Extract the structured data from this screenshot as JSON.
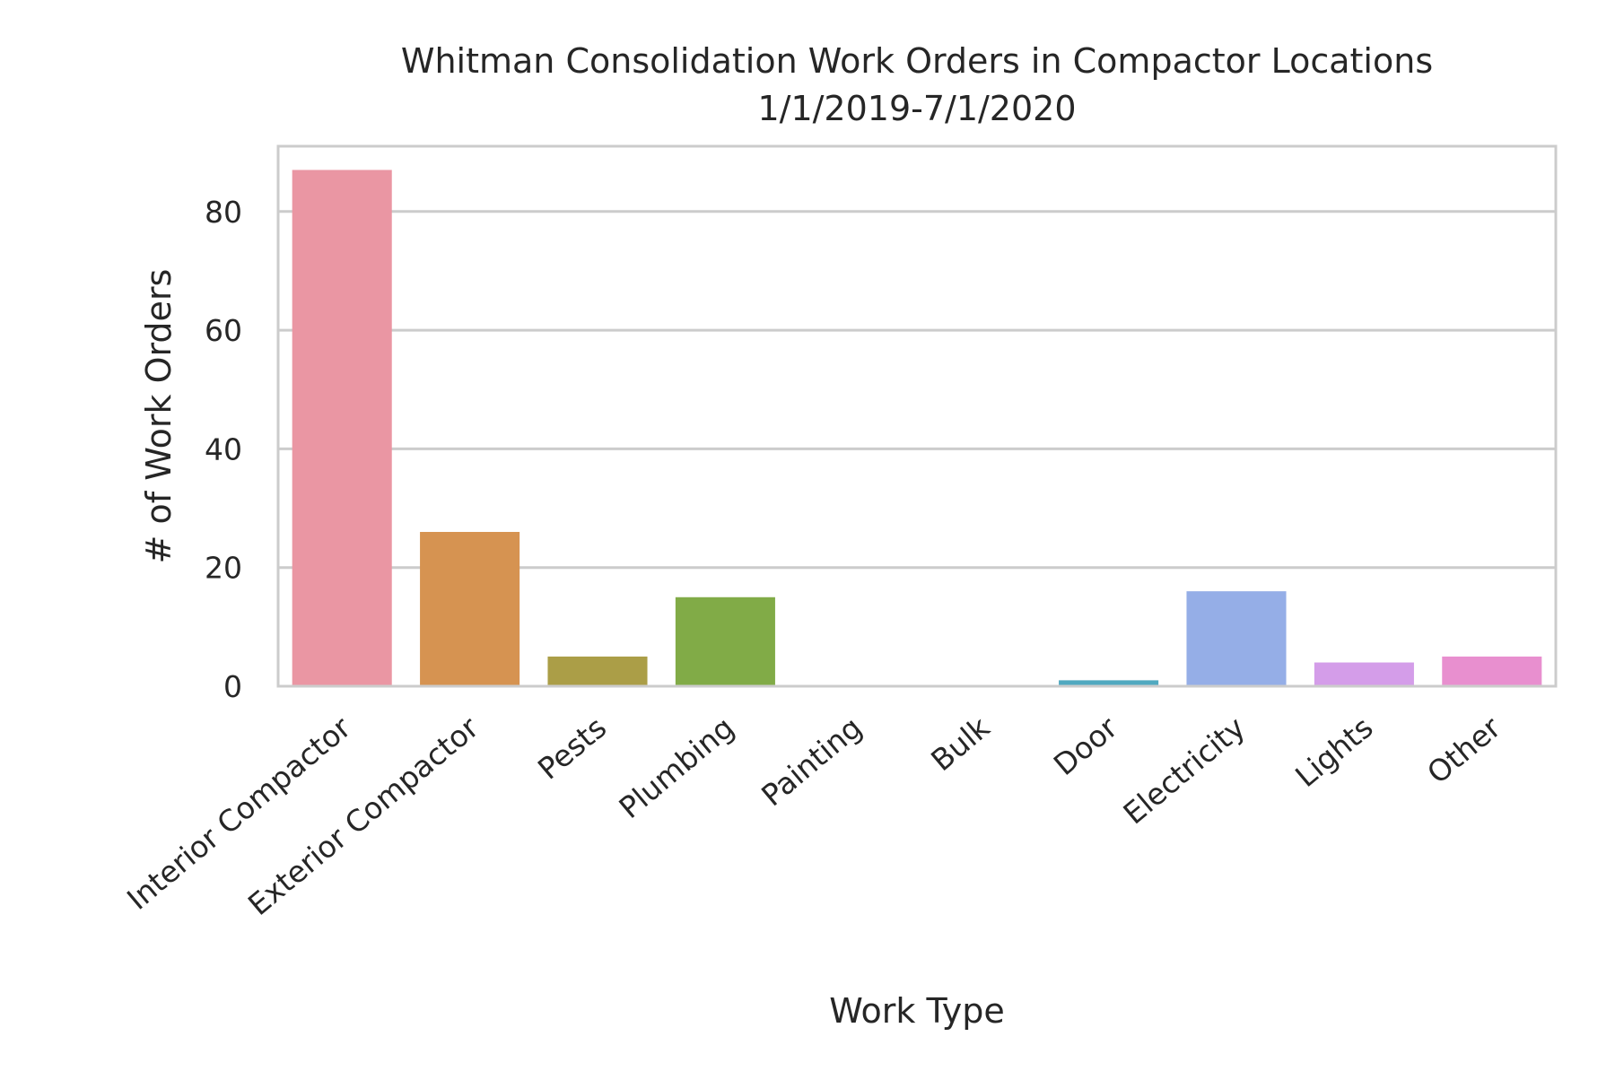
{
  "chart_data": {
    "type": "bar",
    "title": "Whitman Consolidation Work Orders in Compactor Locations",
    "subtitle": "1/1/2019-7/1/2020",
    "xlabel": "Work Type",
    "ylabel": "# of Work Orders",
    "categories": [
      "Interior Compactor",
      "Exterior Compactor",
      "Pests",
      "Plumbing",
      "Painting",
      "Bulk",
      "Door",
      "Electricity",
      "Lights",
      "Other"
    ],
    "values": [
      87,
      26,
      5,
      15,
      0,
      0,
      1,
      16,
      4,
      5
    ],
    "colors": [
      "#ea96a3",
      "#d69351",
      "#ab9e47",
      "#81ab47",
      "#4dad7c",
      "#4fae9f",
      "#51a9c0",
      "#95aee7",
      "#d49de9",
      "#e88fcf"
    ],
    "ylim": [
      0,
      91
    ],
    "yticks": [
      0,
      20,
      40,
      60,
      80
    ],
    "grid": true,
    "legend": "none"
  }
}
